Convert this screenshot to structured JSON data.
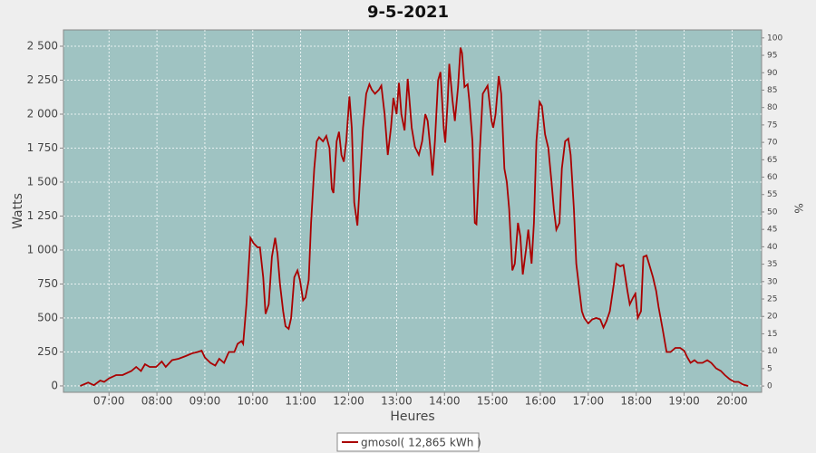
{
  "chart_data": {
    "type": "line",
    "title": "9-5-2021",
    "x_label": "Heures",
    "y_label": "Watts",
    "y2_label": "%",
    "grid": true,
    "legend": "bottom",
    "background": "#9fc3c2",
    "xlim": [
      "06:03",
      "20:37"
    ],
    "xticks": [
      "07:00",
      "08:00",
      "09:00",
      "10:00",
      "11:00",
      "12:00",
      "13:00",
      "14:00",
      "15:00",
      "16:00",
      "17:00",
      "18:00",
      "19:00",
      "20:00"
    ],
    "ylim": [
      -47,
      2620
    ],
    "yticks": [
      0,
      250,
      500,
      750,
      {
        "value": 1000,
        "label": "1 000"
      },
      {
        "value": 1250,
        "label": "1 250"
      },
      {
        "value": 1500,
        "label": "1 500"
      },
      {
        "value": 1750,
        "label": "1 750"
      },
      {
        "value": 2000,
        "label": "2 000"
      },
      {
        "value": 2250,
        "label": "2 250"
      },
      {
        "value": 2500,
        "label": "2 500"
      }
    ],
    "y2lim": [
      -1.8,
      102.3
    ],
    "y2ticks": [
      0,
      5,
      10,
      15,
      20,
      25,
      30,
      35,
      40,
      45,
      50,
      55,
      60,
      65,
      70,
      75,
      80,
      85,
      90,
      95,
      100
    ],
    "x": [
      "06:24",
      "06:34",
      "06:41",
      "06:49",
      "06:54",
      "07:00",
      "07:09",
      "07:17",
      "07:28",
      "07:34",
      "07:40",
      "07:45",
      "07:51",
      "07:59",
      "08:06",
      "08:11",
      "08:19",
      "08:27",
      "08:36",
      "08:44",
      "08:51",
      "08:56",
      "09:00",
      "09:07",
      "09:13",
      "09:18",
      "09:24",
      "09:30",
      "09:37",
      "09:41",
      "09:46",
      "09:48",
      "09:52",
      "09:57",
      "10:01",
      "10:06",
      "10:09",
      "10:13",
      "10:16",
      "10:20",
      "10:24",
      "10:28",
      "10:31",
      "10:34",
      "10:38",
      "10:41",
      "10:45",
      "10:48",
      "10:52",
      "10:56",
      "10:59",
      "11:03",
      "11:06",
      "11:10",
      "11:13",
      "11:17",
      "11:20",
      "11:23",
      "11:28",
      "11:32",
      "11:36",
      "11:39",
      "11:41",
      "11:45",
      "11:48",
      "11:51",
      "11:54",
      "11:57",
      "12:01",
      "12:04",
      "12:07",
      "12:11",
      "12:14",
      "12:18",
      "12:22",
      "12:26",
      "12:29",
      "12:33",
      "12:38",
      "12:41",
      "12:45",
      "12:49",
      "12:53",
      "12:56",
      "13:00",
      "13:03",
      "13:06",
      "13:10",
      "13:14",
      "13:19",
      "13:23",
      "13:28",
      "13:32",
      "13:36",
      "13:39",
      "13:43",
      "13:45",
      "13:48",
      "13:52",
      "13:55",
      "13:59",
      "14:01",
      "14:04",
      "14:06",
      "14:10",
      "14:13",
      "14:17",
      "14:20",
      "14:22",
      "14:25",
      "14:29",
      "14:31",
      "14:35",
      "14:38",
      "14:40",
      "14:44",
      "14:48",
      "14:54",
      "14:59",
      "15:01",
      "15:04",
      "15:08",
      "15:11",
      "15:15",
      "15:18",
      "15:21",
      "15:25",
      "15:28",
      "15:32",
      "15:35",
      "15:38",
      "15:42",
      "15:45",
      "15:49",
      "15:52",
      "15:55",
      "15:59",
      "16:02",
      "16:06",
      "16:10",
      "16:14",
      "16:17",
      "16:20",
      "16:24",
      "16:27",
      "16:31",
      "16:35",
      "16:38",
      "16:42",
      "16:45",
      "16:49",
      "16:52",
      "16:55",
      "17:00",
      "17:05",
      "17:10",
      "17:15",
      "17:19",
      "17:23",
      "17:27",
      "17:32",
      "17:35",
      "17:40",
      "17:44",
      "17:49",
      "17:52",
      "17:56",
      "17:59",
      "18:02",
      "18:06",
      "18:09",
      "18:13",
      "18:16",
      "18:21",
      "18:25",
      "18:28",
      "18:33",
      "18:38",
      "18:43",
      "18:49",
      "18:55",
      "19:00",
      "19:04",
      "19:08",
      "19:13",
      "19:17",
      "19:23",
      "19:29",
      "19:34",
      "19:40",
      "19:46",
      "19:51",
      "19:57",
      "20:03",
      "20:08",
      "20:14",
      "20:20"
    ],
    "series": [
      {
        "name": "gmosol( 12,865 kWh )",
        "color": "#aa0000",
        "values": [
          0,
          25,
          5,
          40,
          30,
          55,
          80,
          80,
          110,
          140,
          110,
          160,
          140,
          140,
          180,
          140,
          190,
          200,
          220,
          240,
          250,
          260,
          210,
          170,
          150,
          200,
          170,
          250,
          250,
          310,
          330,
          310,
          600,
          1090,
          1050,
          1020,
          1020,
          800,
          530,
          600,
          950,
          1090,
          970,
          750,
          550,
          440,
          420,
          500,
          800,
          850,
          780,
          630,
          650,
          780,
          1200,
          1600,
          1800,
          1830,
          1800,
          1840,
          1750,
          1450,
          1420,
          1800,
          1870,
          1700,
          1650,
          1800,
          2130,
          1900,
          1350,
          1180,
          1500,
          1900,
          2150,
          2220,
          2180,
          2150,
          2180,
          2210,
          2000,
          1700,
          1900,
          2120,
          2000,
          2230,
          2000,
          1880,
          2260,
          1900,
          1760,
          1700,
          1800,
          2000,
          1950,
          1700,
          1550,
          1800,
          2250,
          2310,
          1900,
          1790,
          2100,
          2370,
          2100,
          1950,
          2200,
          2490,
          2450,
          2200,
          2220,
          2100,
          1800,
          1200,
          1190,
          1700,
          2150,
          2210,
          1950,
          1900,
          2000,
          2280,
          2150,
          1600,
          1500,
          1300,
          850,
          900,
          1200,
          1100,
          820,
          1000,
          1150,
          900,
          1200,
          1800,
          2090,
          2060,
          1850,
          1750,
          1500,
          1300,
          1150,
          1200,
          1600,
          1800,
          1820,
          1700,
          1300,
          900,
          700,
          550,
          500,
          460,
          490,
          500,
          490,
          430,
          480,
          550,
          750,
          900,
          880,
          890,
          700,
          600,
          650,
          680,
          500,
          550,
          950,
          960,
          900,
          800,
          700,
          580,
          420,
          250,
          250,
          280,
          280,
          260,
          210,
          170,
          190,
          170,
          170,
          190,
          170,
          130,
          110,
          80,
          50,
          30,
          30,
          10,
          0
        ]
      }
    ]
  }
}
